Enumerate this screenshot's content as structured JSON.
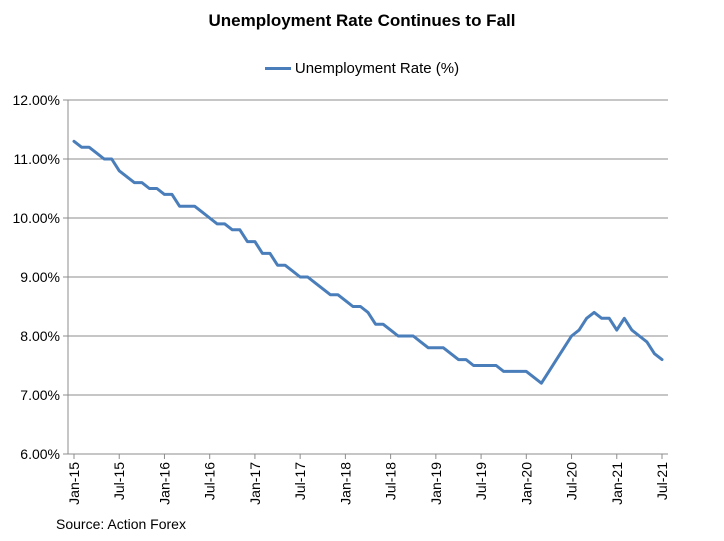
{
  "chart_data": {
    "type": "line",
    "title": "Unemployment Rate Continues to Fall",
    "xlabel": "",
    "ylabel": "",
    "source": "Source: Action Forex",
    "ylim": [
      6,
      12
    ],
    "yticks": [
      "6.00%",
      "7.00%",
      "8.00%",
      "9.00%",
      "10.00%",
      "11.00%",
      "12.00%"
    ],
    "grid": true,
    "legend_position": "top-center",
    "x_tick_labels": [
      "Jan-15",
      "Jul-15",
      "Jan-16",
      "Jul-16",
      "Jan-17",
      "Jul-17",
      "Jan-18",
      "Jul-18",
      "Jan-19",
      "Jul-19",
      "Jan-20",
      "Jul-20",
      "Jan-21",
      "Jul-21"
    ],
    "x_start": "Jan-15",
    "x_end": "Jul-21",
    "series": [
      {
        "name": "Unemployment Rate (%)",
        "color": "#4a7ebb",
        "values": [
          11.3,
          11.2,
          11.2,
          11.1,
          11.0,
          11.0,
          10.8,
          10.7,
          10.6,
          10.6,
          10.5,
          10.5,
          10.4,
          10.4,
          10.2,
          10.2,
          10.2,
          10.1,
          10.0,
          9.9,
          9.9,
          9.8,
          9.8,
          9.6,
          9.6,
          9.4,
          9.4,
          9.2,
          9.2,
          9.1,
          9.0,
          9.0,
          8.9,
          8.8,
          8.7,
          8.7,
          8.6,
          8.5,
          8.5,
          8.4,
          8.2,
          8.2,
          8.1,
          8.0,
          8.0,
          8.0,
          7.9,
          7.8,
          7.8,
          7.8,
          7.7,
          7.6,
          7.6,
          7.5,
          7.5,
          7.5,
          7.5,
          7.4,
          7.4,
          7.4,
          7.4,
          7.3,
          7.2,
          7.4,
          7.6,
          7.8,
          8.0,
          8.1,
          8.3,
          8.4,
          8.3,
          8.3,
          8.1,
          8.3,
          8.1,
          8.0,
          7.9,
          7.7,
          7.6
        ]
      }
    ]
  }
}
